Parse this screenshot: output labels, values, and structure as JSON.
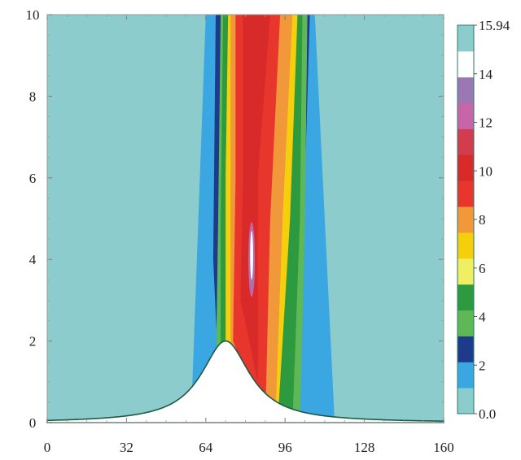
{
  "chart_data": {
    "type": "heatmap",
    "title": "",
    "xlabel": "",
    "ylabel": "",
    "xlim": [
      0,
      160
    ],
    "ylim": [
      0,
      10
    ],
    "x_ticks": [
      "0",
      "32",
      "64",
      "96",
      "128",
      "160"
    ],
    "y_ticks": [
      "0",
      "2",
      "4",
      "6",
      "8",
      "10"
    ],
    "terrain": {
      "type": "witch-of-agnesi hill",
      "peak_x": 72,
      "peak_height": 2,
      "half_width": 12
    },
    "colorbar": {
      "min": 0.0,
      "max": 15.94,
      "labels": [
        "15.94",
        "14",
        "12",
        "10",
        "8",
        "6",
        "4",
        "2",
        "0.0"
      ],
      "level_colors": [
        "#8ccccc",
        "#3aa6e2",
        "#1e3a8a",
        "#5fb856",
        "#2e9a40",
        "#f0ee62",
        "#f6cf0c",
        "#f0983a",
        "#e8362c",
        "#d82a28",
        "#d23c4c",
        "#c864a8",
        "#9b78b4",
        "#ffffff",
        "#8ccccc"
      ]
    },
    "colors": {
      "background_field": "#8ccccc",
      "terrain_fill": "#ffffff",
      "terrain_outline": "#1e5a45"
    }
  }
}
